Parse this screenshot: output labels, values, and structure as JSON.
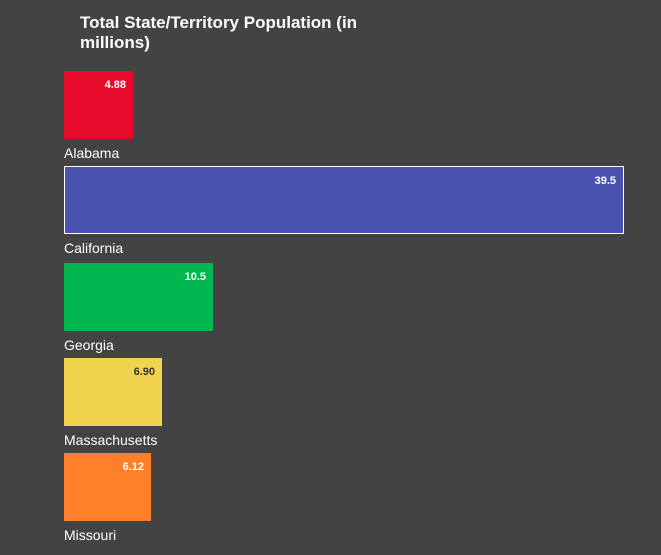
{
  "chart_data": {
    "type": "bar",
    "orientation": "horizontal",
    "title": "Total State/Territory Population (in millions)",
    "categories": [
      "Alabama",
      "California",
      "Georgia",
      "Massachusetts",
      "Missouri"
    ],
    "values": [
      4.88,
      39.5,
      10.5,
      6.9,
      6.12
    ],
    "value_labels": [
      "4.88",
      "39.5",
      "10.5",
      "6.90",
      "6.12"
    ],
    "colors": [
      "#e60b2b",
      "#4b53b0",
      "#00b84f",
      "#f2d34e",
      "#ff7f2a"
    ],
    "label_colors": [
      "#ffffff",
      "#ffffff",
      "#ffffff",
      "#333333",
      "#ffffff"
    ],
    "highlighted": "California",
    "xlim": [
      0,
      39.5
    ],
    "grid": false,
    "legend": "none"
  }
}
